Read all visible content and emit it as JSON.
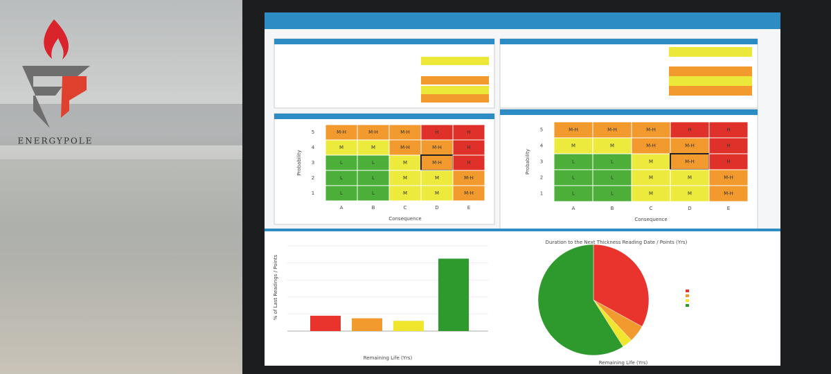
{
  "logo": {
    "name": "ENERGYPOLE"
  },
  "dashboard": {
    "level_colors": {
      "L": "#4caf3a",
      "M": "#ecea3c",
      "M-H": "#f29a2e",
      "H": "#e0302a"
    },
    "matrices": [
      {
        "y_label": "Probability",
        "x_label": "Consequence",
        "rows": [
          "5",
          "4",
          "3",
          "2",
          "1"
        ],
        "columns": [
          "A",
          "B",
          "C",
          "D",
          "E"
        ],
        "cells": [
          [
            "M-H",
            "M-H",
            "M-H",
            "H",
            "H"
          ],
          [
            "M",
            "M",
            "M-H",
            "M-H",
            "H"
          ],
          [
            "L",
            "L",
            "M",
            "M-H",
            "H"
          ],
          [
            "L",
            "L",
            "M",
            "M",
            "M-H"
          ],
          [
            "L",
            "L",
            "M",
            "M",
            "M-H"
          ]
        ],
        "highlight": [
          2,
          3
        ]
      },
      {
        "y_label": "Probability",
        "x_label": "Consequence",
        "rows": [
          "5",
          "4",
          "3",
          "2",
          "1"
        ],
        "columns": [
          "A",
          "B",
          "C",
          "D",
          "E"
        ],
        "cells": [
          [
            "M-H",
            "M-H",
            "M-H",
            "H",
            "H"
          ],
          [
            "M",
            "M",
            "M-H",
            "M-H",
            "H"
          ],
          [
            "L",
            "L",
            "M",
            "M-H",
            "H"
          ],
          [
            "L",
            "L",
            "M",
            "M",
            "M-H"
          ],
          [
            "L",
            "L",
            "M",
            "M",
            "M-H"
          ]
        ],
        "highlight": [
          2,
          3
        ]
      }
    ]
  },
  "chart_data": [
    {
      "type": "bar",
      "x_label": "Remaining Life (Yrs)",
      "y_label": "% of Last Readings / Points",
      "values": [
        18,
        15,
        12,
        85
      ],
      "colors": [
        "#e8342c",
        "#f29a2e",
        "#f1e62e",
        "#2e9a2e"
      ],
      "ylim": [
        0,
        100
      ]
    },
    {
      "type": "pie",
      "title": "Duration to the Next Thickness Reading Date / Points (Yrs)",
      "x_label": "Remaining Life (Yrs)",
      "values": [
        33,
        5,
        3,
        59
      ],
      "colors": [
        "#e8342c",
        "#f29a2e",
        "#f1e62e",
        "#2e9a2e"
      ]
    }
  ]
}
